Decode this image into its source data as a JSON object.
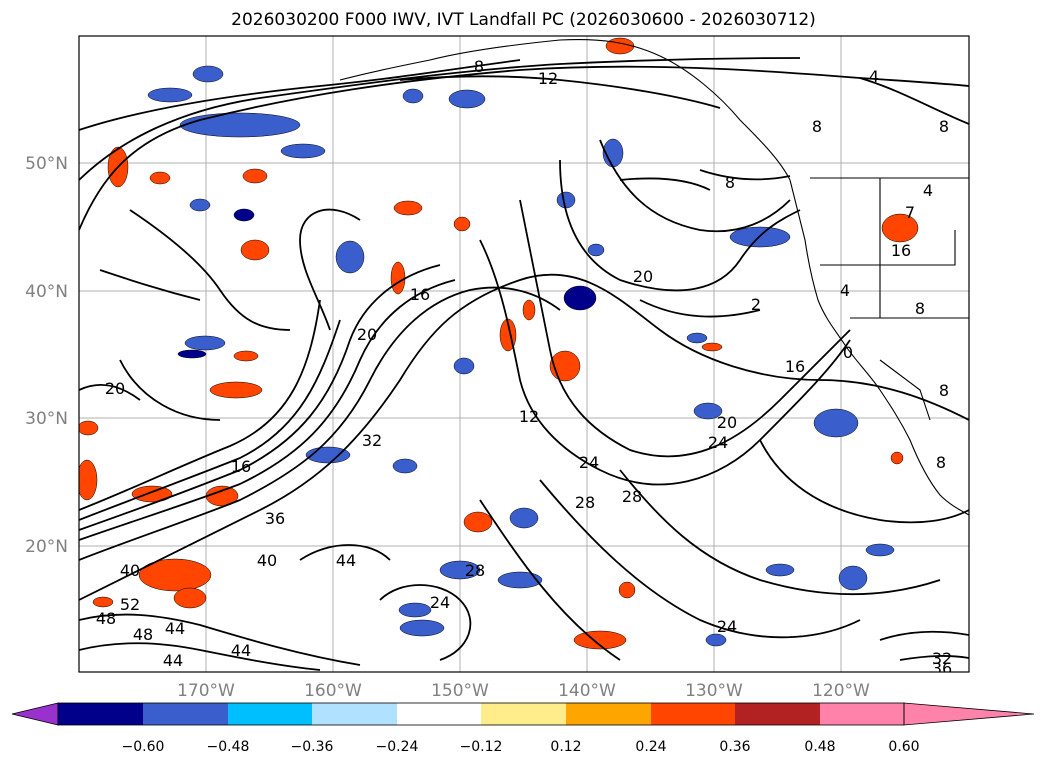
{
  "title": "2026030200 F000 IWV, IVT Landfall PC (2026030600 - 2026030712)",
  "map": {
    "lat_labels": [
      "50°N",
      "40°N",
      "30°N",
      "20°N"
    ],
    "lon_labels": [
      "170°W",
      "160°W",
      "150°W",
      "140°W",
      "130°W",
      "120°W"
    ],
    "contour_labels": [
      "8",
      "12",
      "4",
      "8",
      "8",
      "8",
      "4",
      "16",
      "8",
      "20",
      "2",
      "16",
      "20",
      "32",
      "16",
      "20",
      "12",
      "16",
      "20",
      "24",
      "24",
      "28",
      "28",
      "36",
      "40",
      "44",
      "40",
      "28",
      "24",
      "52",
      "48",
      "48",
      "44",
      "44",
      "44",
      "24",
      "32",
      "36",
      "8",
      "8",
      "4",
      "7",
      "0"
    ]
  },
  "colorbar": {
    "ticks": [
      "−0.60",
      "−0.48",
      "−0.36",
      "−0.24",
      "−0.12",
      "0.12",
      "0.24",
      "0.36",
      "0.48",
      "0.60"
    ],
    "colors": [
      "#9932cc",
      "#00008b",
      "#3a5fcd",
      "#00bfff",
      "#b0e2ff",
      "#ffffff",
      "#ffec8b",
      "#ffa500",
      "#ff4500",
      "#b22222",
      "#ff82ab"
    ]
  }
}
